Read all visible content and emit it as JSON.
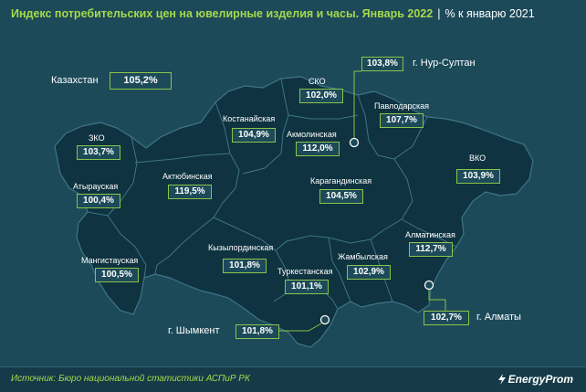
{
  "title": {
    "main": "Индекс потребительских цен на ювелирные изделия и часы. Январь 2022",
    "separator": "|",
    "sub": "% к январю 2021"
  },
  "country": {
    "name": "Казахстан",
    "value": "105,2%"
  },
  "regions": {
    "zko": {
      "name": "ЗКО",
      "value": "103,7%"
    },
    "atyrau": {
      "name": "Атырауская",
      "value": "100,4%"
    },
    "mangistau": {
      "name": "Мангистауская",
      "value": "100,5%"
    },
    "aktobe": {
      "name": "Актюбинская",
      "value": "119,5%"
    },
    "kostanay": {
      "name": "Костанайская",
      "value": "104,9%"
    },
    "sko": {
      "name": "СКО",
      "value": "102,0%"
    },
    "akmola": {
      "name": "Акмолинская",
      "value": "112,0%"
    },
    "pavlodar": {
      "name": "Павлодарская",
      "value": "107,7%"
    },
    "vko": {
      "name": "ВКО",
      "value": "103,9%"
    },
    "karaganda": {
      "name": "Карагандинская",
      "value": "104,5%"
    },
    "kyzylorda": {
      "name": "Кызылординская",
      "value": "101,8%"
    },
    "turkestan": {
      "name": "Туркестанская",
      "value": "101,1%"
    },
    "zhambyl": {
      "name": "Жамбылская",
      "value": "102,9%"
    },
    "almaty_reg": {
      "name": "Алматинская",
      "value": "112,7%"
    }
  },
  "cities": {
    "nur_sultan": {
      "name": "г. Нур-Султан",
      "value": "103,8%"
    },
    "almaty": {
      "name": "г. Алматы",
      "value": "102,7%"
    },
    "shymkent": {
      "name": "г. Шымкент",
      "value": "101,8%"
    }
  },
  "footer": {
    "source": "Источник: Бюро национальной статистики АСПиР РК",
    "brand": "EnergyProm"
  },
  "colors": {
    "background": "#1c4a59",
    "map_fill": "#0f3340",
    "border": "#3f7587",
    "accent": "#a6d94c",
    "box_border": "#8bc34a"
  }
}
